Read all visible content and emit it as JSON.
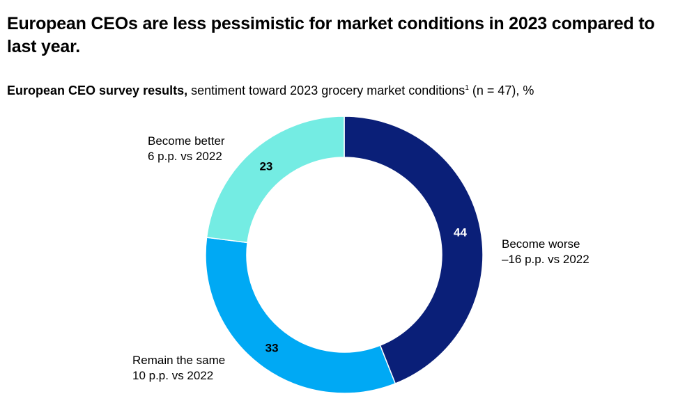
{
  "title": "European CEOs are less pessimistic for market conditions in 2023 compared to last year.",
  "subtitle": {
    "bold": "European CEO survey results,",
    "rest": "sentiment toward 2023 grocery market conditions",
    "footnote": "1",
    "tail": "(n = 47), %"
  },
  "chart_data": {
    "type": "pie",
    "donut": true,
    "slices": [
      {
        "label": "Become worse",
        "value": 44,
        "change": "–16 p.p. vs 2022",
        "color": "#0a1f78",
        "value_color": "#ffffff"
      },
      {
        "label": "Remain the same",
        "value": 33,
        "change": "10 p.p. vs 2022",
        "color": "#00a9f4",
        "value_color": "#000000"
      },
      {
        "label": "Become better",
        "value": 23,
        "change": "6 p.p. vs 2022",
        "color": "#74ece3",
        "value_color": "#000000"
      }
    ]
  }
}
